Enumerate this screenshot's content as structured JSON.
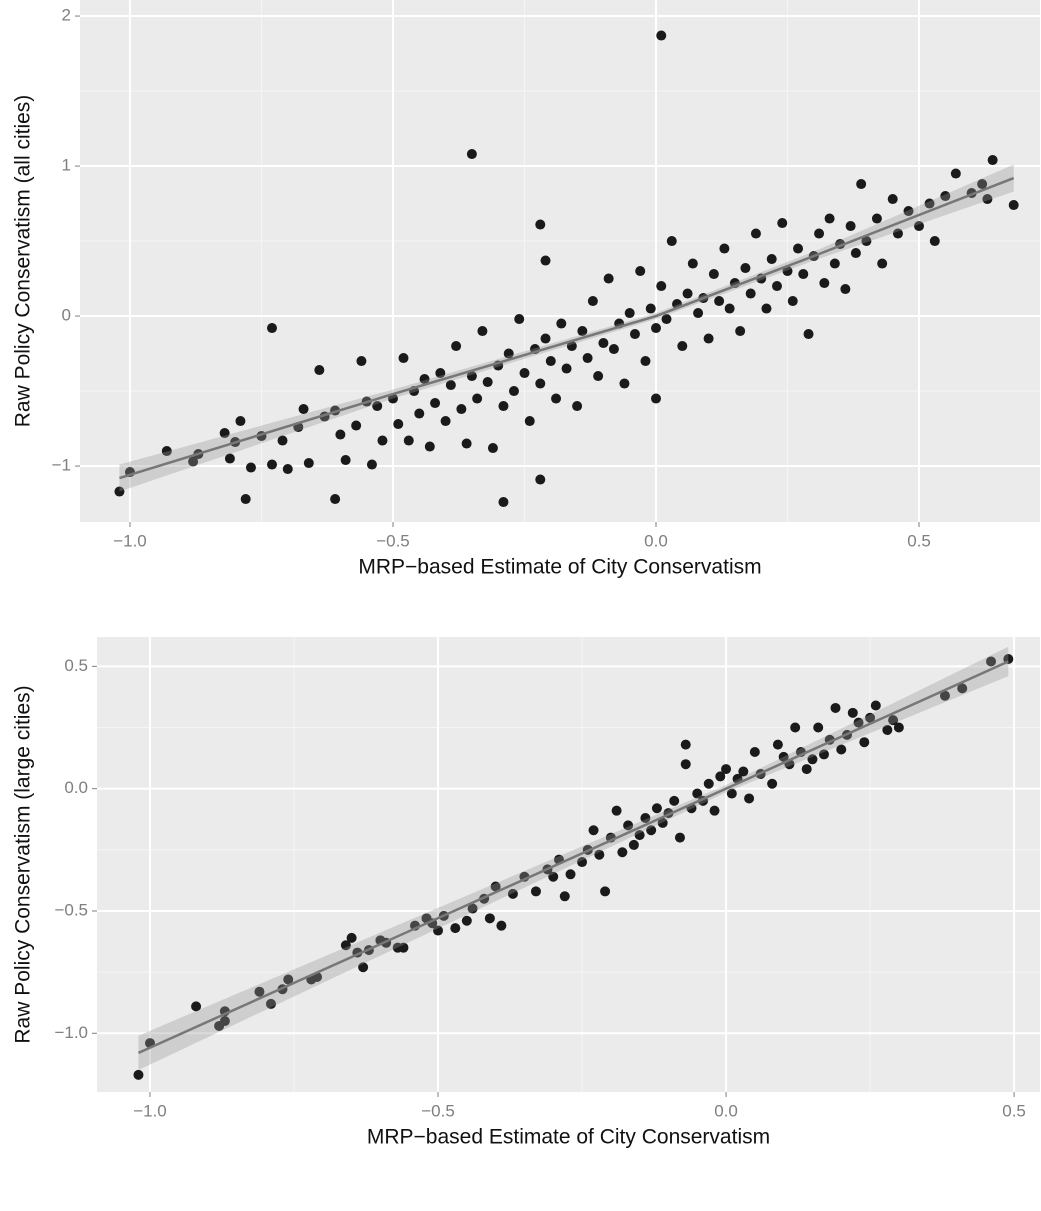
{
  "chart_data": [
    {
      "type": "scatter",
      "xlabel": "MRP−based Estimate of City Conservatism",
      "ylabel": "Raw Policy Conservatism (all cities)",
      "xlim": [
        -1.095,
        0.73
      ],
      "ylim": [
        -1.373,
        2.107
      ],
      "xticks": [
        {
          "value": -1.0,
          "label": "−1.0"
        },
        {
          "value": -0.5,
          "label": "−0.5"
        },
        {
          "value": 0,
          "label": "0.0"
        },
        0.5
      ],
      "yticks": [
        {
          "value": -1,
          "label": "−1"
        },
        0,
        1,
        2
      ],
      "minor_xticks": [
        -0.75,
        -0.25,
        0.25
      ],
      "minor_yticks": [
        -0.5,
        0.5,
        1.5
      ],
      "grid": true,
      "color": "#1a1a1a",
      "x": [
        0.01,
        -0.35,
        -0.73,
        -1.02,
        -1.0,
        -0.78,
        -0.61,
        -0.29,
        -0.22,
        0.64,
        0.68,
        -0.22,
        -0.21,
        -0.93,
        -0.88,
        -0.87,
        -0.82,
        -0.81,
        -0.8,
        -0.79,
        -0.77,
        -0.75,
        -0.73,
        -0.71,
        -0.7,
        -0.68,
        -0.67,
        -0.66,
        -0.64,
        -0.63,
        -0.61,
        -0.6,
        -0.59,
        -0.57,
        -0.56,
        -0.55,
        -0.54,
        -0.53,
        -0.52,
        -0.5,
        -0.49,
        -0.48,
        -0.47,
        -0.46,
        -0.45,
        -0.44,
        -0.43,
        -0.42,
        -0.41,
        -0.4,
        -0.39,
        -0.38,
        -0.37,
        -0.36,
        -0.35,
        -0.34,
        -0.33,
        -0.32,
        -0.31,
        -0.3,
        -0.29,
        -0.28,
        -0.27,
        -0.26,
        -0.25,
        -0.24,
        -0.23,
        -0.22,
        -0.21,
        -0.2,
        -0.19,
        -0.18,
        -0.17,
        -0.16,
        -0.15,
        -0.14,
        -0.13,
        -0.12,
        -0.11,
        -0.1,
        -0.09,
        -0.08,
        -0.07,
        -0.06,
        -0.05,
        -0.04,
        -0.03,
        -0.02,
        -0.01,
        0,
        0,
        0.01,
        0.02,
        0.03,
        0.04,
        0.05,
        0.06,
        0.07,
        0.08,
        0.09,
        0.1,
        0.11,
        0.12,
        0.13,
        0.14,
        0.15,
        0.16,
        0.17,
        0.18,
        0.19,
        0.2,
        0.21,
        0.22,
        0.23,
        0.24,
        0.25,
        0.26,
        0.27,
        0.28,
        0.29,
        0.3,
        0.31,
        0.32,
        0.33,
        0.34,
        0.35,
        0.36,
        0.37,
        0.38,
        0.39,
        0.4,
        0.42,
        0.43,
        0.45,
        0.46,
        0.48,
        0.5,
        0.52,
        0.53,
        0.55,
        0.57,
        0.6,
        0.62,
        0.63
      ],
      "values": [
        1.87,
        1.08,
        -0.08,
        -1.17,
        -1.04,
        -1.22,
        -1.22,
        -1.24,
        -1.09,
        1.04,
        0.74,
        0.61,
        0.37,
        -0.9,
        -0.97,
        -0.92,
        -0.78,
        -0.95,
        -0.84,
        -0.7,
        -1.01,
        -0.8,
        -0.99,
        -0.83,
        -1.02,
        -0.74,
        -0.62,
        -0.98,
        -0.36,
        -0.67,
        -0.63,
        -0.79,
        -0.96,
        -0.73,
        -0.3,
        -0.57,
        -0.99,
        -0.6,
        -0.83,
        -0.55,
        -0.72,
        -0.28,
        -0.83,
        -0.5,
        -0.65,
        -0.42,
        -0.87,
        -0.58,
        -0.38,
        -0.7,
        -0.46,
        -0.2,
        -0.62,
        -0.85,
        -0.4,
        -0.55,
        -0.1,
        -0.44,
        -0.88,
        -0.33,
        -0.6,
        -0.25,
        -0.5,
        -0.02,
        -0.38,
        -0.7,
        -0.22,
        -0.45,
        -0.15,
        -0.3,
        -0.55,
        -0.05,
        -0.35,
        -0.2,
        -0.6,
        -0.1,
        -0.28,
        0.1,
        -0.4,
        -0.18,
        0.25,
        -0.22,
        -0.05,
        -0.45,
        0.02,
        -0.12,
        0.3,
        -0.3,
        0.05,
        -0.08,
        -0.55,
        0.2,
        -0.02,
        0.5,
        0.08,
        -0.2,
        0.15,
        0.35,
        0.02,
        0.12,
        -0.15,
        0.28,
        0.1,
        0.45,
        0.05,
        0.22,
        -0.1,
        0.32,
        0.15,
        0.55,
        0.25,
        0.05,
        0.38,
        0.2,
        0.62,
        0.3,
        0.1,
        0.45,
        0.28,
        -0.12,
        0.4,
        0.55,
        0.22,
        0.65,
        0.35,
        0.48,
        0.18,
        0.6,
        0.42,
        0.88,
        0.5,
        0.65,
        0.35,
        0.78,
        0.55,
        0.7,
        0.6,
        0.75,
        0.5,
        0.8,
        0.95,
        0.82,
        0.88,
        0.78
      ],
      "fit": {
        "x": [
          -1.02,
          -0.5,
          0,
          0.3,
          0.68
        ],
        "y": [
          -1.08,
          -0.52,
          0.0,
          0.4,
          0.92
        ],
        "lower": [
          -1.17,
          -0.55,
          -0.02,
          0.37,
          0.83
        ],
        "upper": [
          -0.99,
          -0.49,
          0.02,
          0.43,
          1.01
        ]
      }
    },
    {
      "type": "scatter",
      "xlabel": "MRP−based Estimate of City Conservatism",
      "ylabel": "Raw Policy Conservatism (large cities)",
      "xlim": [
        -1.092,
        0.545
      ],
      "ylim": [
        -1.24,
        0.62
      ],
      "xticks": [
        {
          "value": -1.0,
          "label": "−1.0"
        },
        {
          "value": -0.5,
          "label": "−0.5"
        },
        {
          "value": 0,
          "label": "0.0"
        },
        0.5
      ],
      "yticks": [
        {
          "value": -1.0,
          "label": "−1.0"
        },
        {
          "value": -0.5,
          "label": "−0.5"
        },
        {
          "value": 0,
          "label": "0.0"
        },
        0.5
      ],
      "minor_xticks": [
        -0.75,
        -0.25,
        0.25
      ],
      "minor_yticks": [
        -0.75,
        -0.25,
        0.25
      ],
      "grid": true,
      "color": "#1a1a1a",
      "x": [
        -1.02,
        -1.0,
        -0.92,
        -0.88,
        -0.87,
        -0.87,
        -0.81,
        -0.79,
        -0.77,
        -0.76,
        -0.72,
        -0.71,
        -0.66,
        -0.65,
        -0.64,
        -0.63,
        -0.62,
        -0.6,
        -0.59,
        -0.57,
        -0.56,
        -0.54,
        -0.52,
        -0.51,
        -0.5,
        -0.49,
        -0.47,
        -0.45,
        -0.44,
        -0.42,
        -0.41,
        -0.4,
        -0.39,
        -0.37,
        -0.35,
        -0.33,
        -0.31,
        -0.3,
        -0.29,
        -0.28,
        -0.27,
        -0.25,
        -0.24,
        -0.23,
        -0.22,
        -0.21,
        -0.2,
        -0.19,
        -0.18,
        -0.17,
        -0.16,
        -0.15,
        -0.14,
        -0.13,
        -0.12,
        -0.11,
        -0.1,
        -0.09,
        -0.08,
        -0.07,
        -0.07,
        -0.06,
        -0.05,
        -0.04,
        -0.03,
        -0.02,
        -0.01,
        0,
        0.01,
        0.02,
        0.03,
        0.04,
        0.05,
        0.06,
        0.08,
        0.09,
        0.1,
        0.11,
        0.12,
        0.13,
        0.14,
        0.15,
        0.16,
        0.17,
        0.18,
        0.19,
        0.2,
        0.21,
        0.22,
        0.23,
        0.24,
        0.25,
        0.26,
        0.28,
        0.29,
        0.3,
        0.38,
        0.41,
        0.46,
        0.49
      ],
      "values": [
        -1.17,
        -1.04,
        -0.89,
        -0.97,
        -0.91,
        -0.95,
        -0.83,
        -0.88,
        -0.82,
        -0.78,
        -0.78,
        -0.77,
        -0.64,
        -0.61,
        -0.67,
        -0.73,
        -0.66,
        -0.62,
        -0.63,
        -0.65,
        -0.65,
        -0.56,
        -0.53,
        -0.55,
        -0.58,
        -0.52,
        -0.57,
        -0.54,
        -0.49,
        -0.45,
        -0.53,
        -0.4,
        -0.56,
        -0.43,
        -0.36,
        -0.42,
        -0.33,
        -0.36,
        -0.29,
        -0.44,
        -0.35,
        -0.3,
        -0.25,
        -0.17,
        -0.27,
        -0.42,
        -0.2,
        -0.09,
        -0.26,
        -0.15,
        -0.23,
        -0.19,
        -0.12,
        -0.17,
        -0.08,
        -0.14,
        -0.1,
        -0.05,
        -0.2,
        0.18,
        0.1,
        -0.08,
        -0.02,
        -0.05,
        0.02,
        -0.09,
        0.05,
        0.08,
        -0.02,
        0.04,
        0.07,
        -0.04,
        0.15,
        0.06,
        0.02,
        0.18,
        0.13,
        0.1,
        0.25,
        0.15,
        0.08,
        0.12,
        0.25,
        0.14,
        0.2,
        0.33,
        0.16,
        0.22,
        0.31,
        0.27,
        0.19,
        0.29,
        0.34,
        0.24,
        0.28,
        0.25,
        0.38,
        0.41,
        0.52,
        0.53
      ],
      "fit": {
        "x": [
          -1.02,
          0,
          0.49
        ],
        "y": [
          -1.08,
          0.0,
          0.52
        ],
        "lower": [
          -1.15,
          -0.015,
          0.46
        ],
        "upper": [
          -1.01,
          0.015,
          0.58
        ]
      }
    }
  ]
}
